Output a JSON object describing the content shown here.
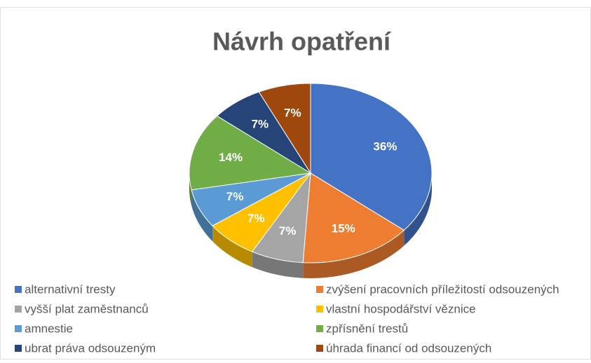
{
  "chart_data": {
    "type": "pie",
    "title": "Návrh opatření",
    "categories": [
      "alternativní tresty",
      "zvýšení pracovních příležitostí odsouzených",
      "vyšší plat zaměstnanců",
      "vlastní hospodářství věznice",
      "amnestie",
      "zpřísnění trestů",
      "ubrat práva odsouzeným",
      "úhrada financí od odsouzených"
    ],
    "values": [
      36,
      15,
      7,
      7,
      7,
      14,
      7,
      7
    ],
    "value_labels": [
      "36%",
      "15%",
      "7%",
      "7%",
      "7%",
      "14%",
      "7%",
      "7%"
    ],
    "colors": [
      "#4472c4",
      "#ed7d31",
      "#a5a5a5",
      "#ffc000",
      "#5b9bd5",
      "#70ad47",
      "#264478",
      "#9e480e"
    ],
    "legend": "bottom"
  }
}
